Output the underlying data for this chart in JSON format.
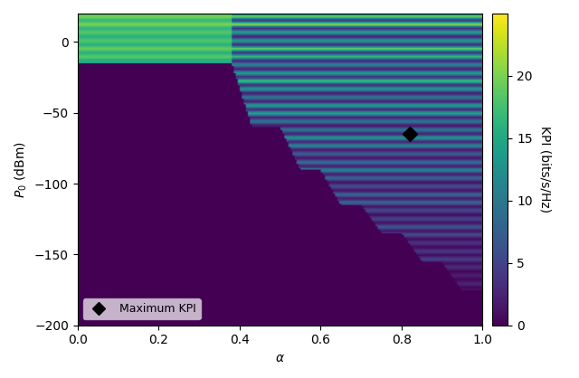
{
  "alpha_range": [
    0.0,
    1.0
  ],
  "alpha_steps": 200,
  "p0_min": -200,
  "p0_max": 20,
  "p0_steps": 220,
  "max_kpi_alpha": 0.82,
  "max_kpi_p0": -65,
  "colorbar_label": "KPI (bits/s/Hz)",
  "xlabel": "$\\alpha$",
  "ylabel": "$P_0$ (dBm)",
  "legend_label": "Maximum KPI",
  "vmin": 0,
  "vmax": 25,
  "cmap": "viridis",
  "colorbar_ticks": [
    0,
    5,
    10,
    15,
    20
  ],
  "yticks": [
    0,
    -50,
    -100,
    -150,
    -200
  ],
  "xticks": [
    0.0,
    0.2,
    0.4,
    0.6,
    0.8,
    1.0
  ]
}
